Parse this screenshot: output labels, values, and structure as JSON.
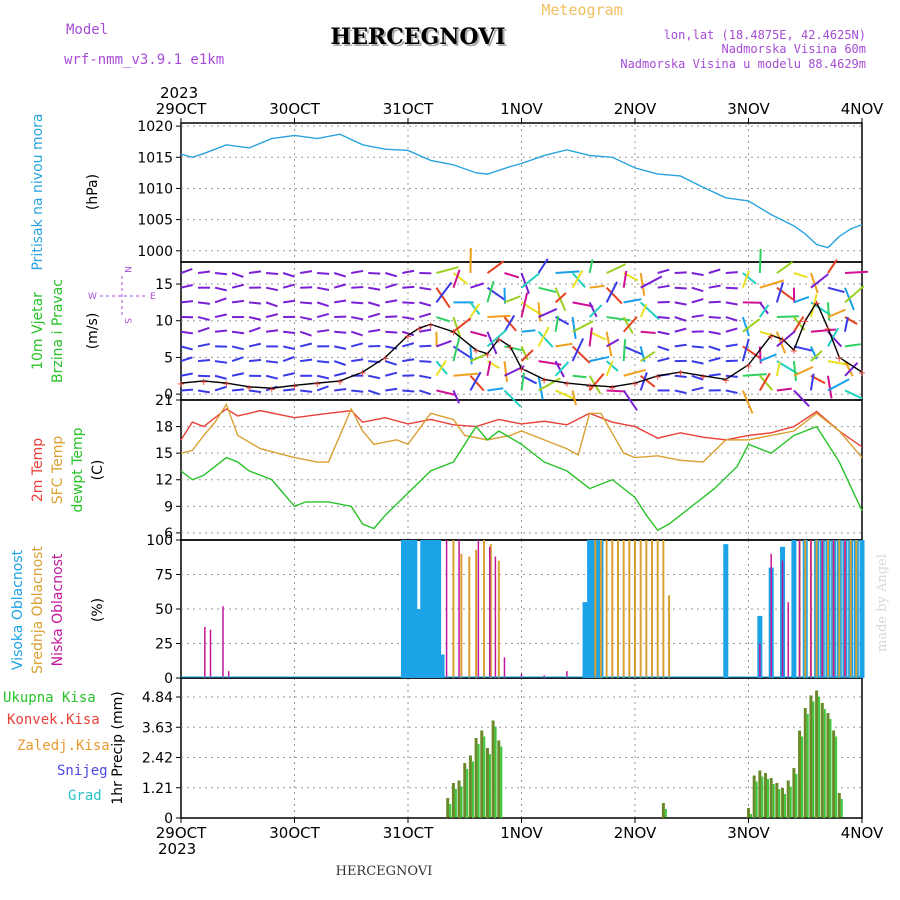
{
  "header": {
    "model_label": "Model",
    "model_name": "wrf-nmm_v3.9.1 e1km",
    "title": "HERCEGNOVI",
    "meteogram": "Meteogram",
    "lonlat": "lon,lat (18.4875E, 42.4625N)",
    "elevation": "Nadmorska Visina 60m",
    "model_elevation": "Nadmorska Visina u modelu 88.4629m",
    "year_top": "2023",
    "year_bottom": "2023",
    "footer_title": "HERCEGNOVI",
    "credit": "made by Angel"
  },
  "colors": {
    "pressure": "#29a3e0",
    "temp2m": "#e8413a",
    "sfc": "#d9a032",
    "dewpt": "#29c229",
    "high_cloud": "#1ca2e6",
    "mid_cloud": "#d9a032",
    "low_cloud": "#c4169a",
    "total_precip": "#6a8a2a",
    "precip_green": "#3cc83c",
    "purple": "#a64cd6",
    "orange_text": "#e89a30"
  },
  "x_ticks": [
    "29OCT",
    "30OCT",
    "31OCT",
    "1NOV",
    "2NOV",
    "3NOV",
    "4NOV"
  ],
  "chart_data": [
    {
      "type": "line",
      "panel": "pressure",
      "labels": {
        "title": "Pritisak na nivou mora",
        "unit": "(hPa)"
      },
      "yticks": [
        "1020",
        "1015",
        "1010",
        "1005",
        "1000"
      ],
      "ylim": [
        998.2,
        1020.5
      ],
      "x_days": [
        0,
        0.1,
        0.2,
        0.4,
        0.6,
        0.8,
        1.0,
        1.2,
        1.4,
        1.6,
        1.8,
        2.0,
        2.2,
        2.4,
        2.6,
        2.7,
        2.9,
        3.0,
        3.2,
        3.4,
        3.6,
        3.8,
        4.0,
        4.2,
        4.4,
        4.6,
        4.8,
        5.0,
        5.2,
        5.4,
        5.5,
        5.6,
        5.7,
        5.8,
        5.9,
        6.0
      ],
      "values": [
        1015.5,
        1015,
        1015.6,
        1017,
        1016.5,
        1018,
        1018.5,
        1018,
        1018.7,
        1017,
        1016.3,
        1016.1,
        1014.5,
        1013.8,
        1012.5,
        1012.3,
        1013.5,
        1014,
        1015.3,
        1016.2,
        1015.3,
        1015,
        1013.3,
        1012.3,
        1012,
        1010.2,
        1008.5,
        1008,
        1005.8,
        1004,
        1002.7,
        1001,
        1000.5,
        1002.3,
        1003.5,
        1004.2
      ]
    },
    {
      "type": "line",
      "panel": "wind",
      "labels": {
        "title1": "10m Vjetar",
        "title2": "Brzina i Pravac",
        "unit": "(m/s)",
        "compass_n": "N",
        "compass_s": "S",
        "compass_w": "W",
        "compass_e": "E"
      },
      "yticks": [
        "15",
        "10",
        "5",
        "0"
      ],
      "ylim": [
        -0.8,
        18
      ],
      "x_days": [
        0,
        0.2,
        0.4,
        0.6,
        0.8,
        1.0,
        1.2,
        1.4,
        1.6,
        1.8,
        2.0,
        2.1,
        2.2,
        2.4,
        2.6,
        2.7,
        2.8,
        2.9,
        3.0,
        3.2,
        3.4,
        3.6,
        3.8,
        4.0,
        4.2,
        4.4,
        4.6,
        4.8,
        5.0,
        5.2,
        5.3,
        5.4,
        5.5,
        5.6,
        5.7,
        5.8,
        6.0
      ],
      "values": [
        1.5,
        1.8,
        1.5,
        1.0,
        0.8,
        1.2,
        1.5,
        1.8,
        3.0,
        5.0,
        8.0,
        9.0,
        9.5,
        8.5,
        6.0,
        5.5,
        7.5,
        6.5,
        3.5,
        2.0,
        1.5,
        1.2,
        1.0,
        1.5,
        2.5,
        3.0,
        2.5,
        2.0,
        4.0,
        8.0,
        7.5,
        6.0,
        10.0,
        12.5,
        9.0,
        5.0,
        3.0
      ]
    },
    {
      "type": "line",
      "panel": "temperature",
      "labels": {
        "t2m": "2m Temp",
        "sfc": "SFC Temp",
        "dewpt": "dewpt Temp",
        "unit": "(C)"
      },
      "yticks": [
        "21",
        "18",
        "15",
        "12",
        "9",
        "6"
      ],
      "ylim": [
        5.2,
        21
      ],
      "series": [
        {
          "key": "t2m",
          "x_days": [
            0,
            0.1,
            0.2,
            0.3,
            0.4,
            0.5,
            0.7,
            1.0,
            1.3,
            1.5,
            1.6,
            1.8,
            2.0,
            2.2,
            2.4,
            2.6,
            2.8,
            3.0,
            3.2,
            3.4,
            3.6,
            3.8,
            4.0,
            4.2,
            4.4,
            4.6,
            4.8,
            5.0,
            5.2,
            5.4,
            5.6,
            5.8,
            6.0
          ],
          "values": [
            16.5,
            18.5,
            18.0,
            19.0,
            20.0,
            19.2,
            19.8,
            19.0,
            19.5,
            19.8,
            18.5,
            19.0,
            18.3,
            18.8,
            18.2,
            18.0,
            18.8,
            18.3,
            18.6,
            18.2,
            19.5,
            18.5,
            18.0,
            16.7,
            17.3,
            16.8,
            16.5,
            17.0,
            17.3,
            18.0,
            19.7,
            17.5,
            15.7
          ]
        },
        {
          "key": "sfc",
          "x_days": [
            0,
            0.1,
            0.2,
            0.3,
            0.4,
            0.5,
            0.7,
            1.0,
            1.2,
            1.3,
            1.5,
            1.6,
            1.7,
            1.9,
            2.0,
            2.2,
            2.4,
            2.5,
            2.7,
            2.9,
            3.0,
            3.2,
            3.4,
            3.5,
            3.6,
            3.7,
            3.9,
            4.0,
            4.2,
            4.4,
            4.6,
            4.8,
            5.0,
            5.2,
            5.4,
            5.6,
            5.8,
            6.0
          ],
          "values": [
            15.0,
            15.3,
            17.0,
            18.5,
            20.5,
            17.0,
            15.5,
            14.5,
            14.0,
            14.0,
            20.0,
            17.5,
            16.0,
            16.5,
            16.0,
            19.5,
            18.8,
            17.0,
            16.5,
            17.0,
            17.5,
            16.5,
            15.5,
            14.8,
            19.5,
            19.5,
            15.0,
            14.5,
            14.7,
            14.2,
            14.0,
            16.5,
            16.5,
            17.0,
            17.5,
            19.5,
            17.5,
            14.5
          ]
        },
        {
          "key": "dewpt",
          "x_days": [
            0,
            0.1,
            0.2,
            0.3,
            0.4,
            0.5,
            0.6,
            0.8,
            1.0,
            1.1,
            1.3,
            1.5,
            1.6,
            1.7,
            1.8,
            2.0,
            2.2,
            2.4,
            2.6,
            2.7,
            2.8,
            3.0,
            3.2,
            3.4,
            3.6,
            3.8,
            4.0,
            4.1,
            4.2,
            4.3,
            4.5,
            4.7,
            4.9,
            5.0,
            5.2,
            5.4,
            5.6,
            5.8,
            6.0
          ],
          "values": [
            13.0,
            12.0,
            12.5,
            13.5,
            14.5,
            14.0,
            13.0,
            12.0,
            9.0,
            9.5,
            9.5,
            9.0,
            7.0,
            6.5,
            8.0,
            10.5,
            13.0,
            14.0,
            18.0,
            16.5,
            17.5,
            16.0,
            14.0,
            13.0,
            11.0,
            12.0,
            10.0,
            8.0,
            6.3,
            7.0,
            9.0,
            11.0,
            13.5,
            16.0,
            15.0,
            17.0,
            18.0,
            14.0,
            8.5
          ]
        }
      ]
    },
    {
      "type": "bar",
      "panel": "cloud",
      "labels": {
        "high": "Visoka Oblacnost",
        "mid": "Srednja Oblacnost",
        "low": "Niska Oblacnost",
        "unit": "(%)"
      },
      "yticks": [
        "100",
        "75",
        "50",
        "25",
        "0"
      ],
      "ylim": [
        0,
        100
      ],
      "series": [
        {
          "key": "high",
          "x_days": [
            1.96,
            1.99,
            2.02,
            2.06,
            2.1,
            2.13,
            2.17,
            2.2,
            2.23,
            2.27,
            2.3,
            3.56,
            3.6,
            3.63,
            3.66,
            3.7,
            4.8,
            5.1,
            5.2,
            5.3,
            5.4,
            5.5,
            5.6,
            5.65,
            5.7,
            5.75,
            5.8,
            5.85,
            5.9,
            5.95,
            6.0
          ],
          "values": [
            100,
            100,
            100,
            100,
            50,
            100,
            100,
            100,
            100,
            100,
            17,
            55,
            100,
            100,
            100,
            100,
            97,
            45,
            80,
            95,
            100,
            100,
            100,
            100,
            100,
            100,
            100,
            100,
            100,
            100,
            100
          ]
        },
        {
          "key": "mid",
          "x_days": [
            2.4,
            2.47,
            2.54,
            2.6,
            2.67,
            2.73,
            2.8,
            3.65,
            3.7,
            3.75,
            3.8,
            3.85,
            3.9,
            3.95,
            4.0,
            4.05,
            4.1,
            4.15,
            4.2,
            4.25,
            4.3,
            5.45,
            5.5,
            5.55,
            5.6,
            5.65,
            5.7,
            5.75,
            5.8,
            5.85,
            5.9,
            5.95
          ],
          "values": [
            100,
            90,
            88,
            93,
            100,
            97,
            85,
            100,
            100,
            100,
            100,
            100,
            100,
            100,
            100,
            100,
            100,
            100,
            100,
            100,
            60,
            100,
            100,
            100,
            100,
            100,
            100,
            100,
            100,
            100,
            100,
            100
          ]
        },
        {
          "key": "low",
          "x_days": [
            0.21,
            0.26,
            0.37,
            0.42,
            2.34,
            2.45,
            2.62,
            2.72,
            2.77,
            2.85,
            3.0,
            3.2,
            3.4,
            5.1,
            5.2,
            5.3,
            5.35,
            5.45,
            5.55,
            5.65,
            5.75,
            5.85
          ],
          "values": [
            37,
            35,
            52,
            5,
            100,
            100,
            100,
            95,
            88,
            15,
            3,
            2,
            5,
            25,
            90,
            85,
            55,
            100,
            100,
            100,
            100,
            100
          ]
        }
      ]
    },
    {
      "type": "bar",
      "panel": "precip",
      "labels": {
        "unit": "1hr Precip (mm)",
        "total": "Ukupna Kisa",
        "conv": "Konvek.Kisa",
        "frozen": "Zaledj.Kisa",
        "snow": "Snijeg",
        "graupel": "Grad"
      },
      "yticks": [
        "4.84",
        "3.63",
        "2.42",
        "1.21",
        "0"
      ],
      "ylim": [
        0,
        5.6
      ],
      "x_days": [
        2.35,
        2.4,
        2.45,
        2.5,
        2.55,
        2.6,
        2.65,
        2.7,
        2.75,
        2.8,
        4.25,
        5.0,
        5.05,
        5.1,
        5.15,
        5.2,
        5.25,
        5.3,
        5.35,
        5.4,
        5.45,
        5.5,
        5.55,
        5.6,
        5.65,
        5.7,
        5.75,
        5.8
      ],
      "values": [
        0.8,
        1.4,
        1.5,
        2.2,
        2.5,
        3.2,
        3.5,
        2.8,
        3.9,
        3.1,
        0.6,
        0.4,
        1.7,
        1.9,
        1.8,
        1.6,
        1.4,
        1.2,
        1.5,
        2.0,
        3.5,
        4.4,
        4.9,
        5.1,
        4.6,
        4.2,
        3.5,
        1.0
      ]
    }
  ]
}
